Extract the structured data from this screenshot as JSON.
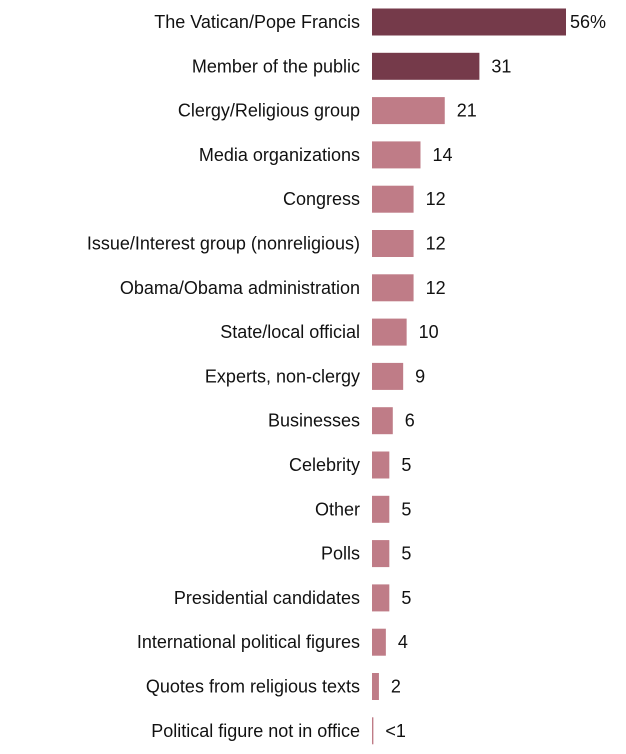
{
  "chart_data": {
    "type": "bar",
    "orientation": "horizontal",
    "categories": [
      "The Vatican/Pope Francis",
      "Member of the public",
      "Clergy/Religious group",
      "Media organizations",
      "Congress",
      "Issue/Interest group (nonreligious)",
      "Obama/Obama administration",
      "State/local official",
      "Experts, non-clergy",
      "Businesses",
      "Celebrity",
      "Other",
      "Polls",
      "Presidential candidates",
      "International political figures",
      "Quotes from religious texts",
      "Political figure not in office"
    ],
    "values": [
      56,
      31,
      21,
      14,
      12,
      12,
      12,
      10,
      9,
      6,
      5,
      5,
      5,
      5,
      4,
      2,
      0.4
    ],
    "value_labels": [
      "56%",
      "31",
      "21",
      "14",
      "12",
      "12",
      "12",
      "10",
      "9",
      "6",
      "5",
      "5",
      "5",
      "5",
      "4",
      "2",
      "<1"
    ],
    "highlight_count": 2,
    "colors": {
      "highlight": "#753A4A",
      "default": "#BF7C87"
    },
    "xlim": [
      0,
      56
    ],
    "grid": false,
    "legend": "none",
    "title": "",
    "xlabel": "",
    "ylabel": ""
  }
}
